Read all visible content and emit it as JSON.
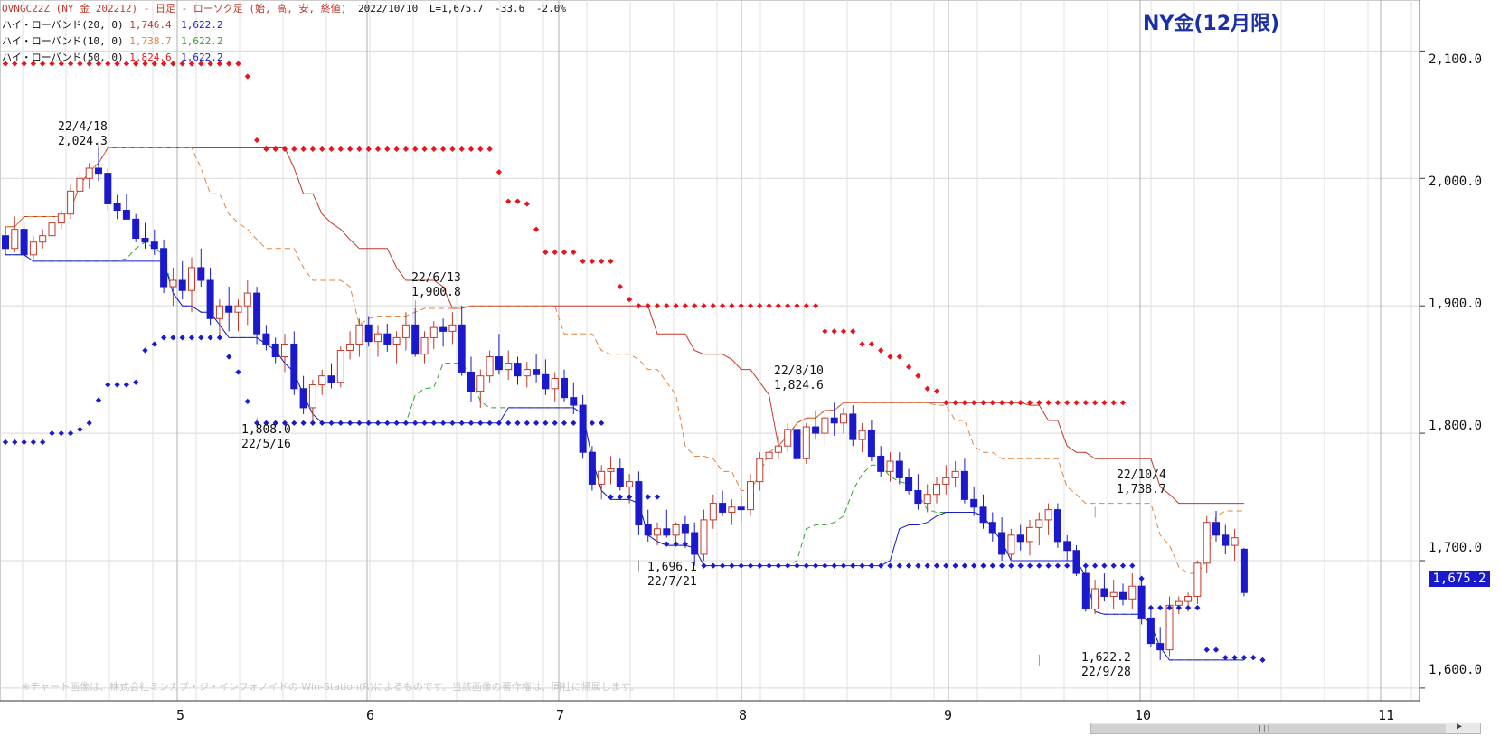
{
  "header": {
    "line1": {
      "title": "OVNGC22Z (NY 金 202212) - 日足 - ローソク足 (始, 高, 安, 終値)",
      "date": "2022/10/10",
      "last": "L=1,675.7",
      "change": "-33.6",
      "pct": "-2.0%"
    },
    "band20": {
      "label": "ハイ・ローバンド(20, 0)",
      "high": "1,746.4",
      "low": "1,622.2"
    },
    "band10": {
      "label": "ハイ・ローバンド(10, 0)",
      "high": "1,738.7",
      "low": "1,622.2"
    },
    "band50": {
      "label": "ハイ・ローバンド(50, 0)",
      "high": "1,824.6",
      "low": "1,622.2"
    }
  },
  "big_title": "NY金(12月限)",
  "watermark": "※チャート画像は、株式会社ミンカブ・ジ・インフォノイドの Win-Station(R)によるものです。当該画像の著作権は、同社に帰属します。",
  "last_price_label": "1,675.2",
  "annotations": {
    "a1": {
      "date": "22/4/18",
      "value": "2,024.3"
    },
    "a2": {
      "value": "1,808.0",
      "date": "22/5/16"
    },
    "a3": {
      "date": "22/6/13",
      "value": "1,900.8"
    },
    "a4": {
      "value": "1,696.1",
      "date": "22/7/21"
    },
    "a5": {
      "date": "22/8/10",
      "value": "1,824.6"
    },
    "a6": {
      "date": "22/10/4",
      "value": "1,738.7"
    },
    "a7": {
      "value": "1,622.2",
      "date": "22/9/28"
    }
  },
  "colors": {
    "up_candle": "#c0392b",
    "down_candle": "#1a1acc",
    "band20": "#c0392b",
    "band10": "#e0833c",
    "band50": "#1a1acc",
    "band50_dots_high": "#e8131b",
    "band50_dots_low": "#1a1acc",
    "low_line_green": "#2ea52e",
    "title": "#1a2fa8"
  },
  "chart_data": {
    "type": "candlestick",
    "title": "NY金(12月限)",
    "ylim": [
      1590,
      2140
    ],
    "y_ticks": [
      "2,100.0",
      "2,000.0",
      "1,900.0",
      "1,800.0",
      "1,700.0",
      "1,600.0"
    ],
    "x_ticks": [
      "5",
      "6",
      "7",
      "8",
      "9",
      "10",
      "11"
    ],
    "grid": true,
    "ohlc": [
      [
        1955,
        1962,
        1940,
        1945
      ],
      [
        1945,
        1970,
        1942,
        1960
      ],
      [
        1960,
        1965,
        1935,
        1940
      ],
      [
        1940,
        1955,
        1937,
        1950
      ],
      [
        1950,
        1960,
        1945,
        1955
      ],
      [
        1955,
        1968,
        1952,
        1965
      ],
      [
        1965,
        1975,
        1960,
        1972
      ],
      [
        1972,
        1995,
        1968,
        1990
      ],
      [
        1990,
        2005,
        1985,
        2000
      ],
      [
        2000,
        2012,
        1992,
        2008
      ],
      [
        2008,
        2024,
        1998,
        2004
      ],
      [
        2004,
        2008,
        1975,
        1980
      ],
      [
        1980,
        1987,
        1968,
        1975
      ],
      [
        1975,
        1988,
        1970,
        1968
      ],
      [
        1968,
        1972,
        1950,
        1953
      ],
      [
        1953,
        1965,
        1945,
        1950
      ],
      [
        1950,
        1960,
        1940,
        1945
      ],
      [
        1945,
        1952,
        1910,
        1915
      ],
      [
        1915,
        1930,
        1900,
        1920
      ],
      [
        1920,
        1935,
        1905,
        1912
      ],
      [
        1912,
        1938,
        1895,
        1930
      ],
      [
        1930,
        1945,
        1915,
        1920
      ],
      [
        1920,
        1930,
        1885,
        1890
      ],
      [
        1890,
        1905,
        1875,
        1900
      ],
      [
        1900,
        1915,
        1880,
        1895
      ],
      [
        1895,
        1905,
        1880,
        1900
      ],
      [
        1900,
        1920,
        1885,
        1910
      ],
      [
        1910,
        1915,
        1870,
        1878
      ],
      [
        1878,
        1885,
        1865,
        1870
      ],
      [
        1870,
        1875,
        1855,
        1860
      ],
      [
        1860,
        1878,
        1848,
        1870
      ],
      [
        1870,
        1880,
        1830,
        1835
      ],
      [
        1835,
        1845,
        1815,
        1820
      ],
      [
        1820,
        1842,
        1808,
        1838
      ],
      [
        1838,
        1850,
        1830,
        1845
      ],
      [
        1845,
        1855,
        1835,
        1840
      ],
      [
        1840,
        1868,
        1836,
        1865
      ],
      [
        1865,
        1880,
        1858,
        1870
      ],
      [
        1870,
        1890,
        1860,
        1885
      ],
      [
        1885,
        1892,
        1868,
        1872
      ],
      [
        1872,
        1885,
        1860,
        1878
      ],
      [
        1878,
        1886,
        1864,
        1870
      ],
      [
        1870,
        1880,
        1855,
        1875
      ],
      [
        1875,
        1895,
        1865,
        1885
      ],
      [
        1885,
        1898,
        1860,
        1862
      ],
      [
        1862,
        1880,
        1855,
        1875
      ],
      [
        1875,
        1888,
        1866,
        1883
      ],
      [
        1883,
        1890,
        1868,
        1880
      ],
      [
        1880,
        1895,
        1870,
        1885
      ],
      [
        1885,
        1900,
        1845,
        1848
      ],
      [
        1848,
        1860,
        1825,
        1833
      ],
      [
        1833,
        1850,
        1820,
        1845
      ],
      [
        1845,
        1865,
        1840,
        1860
      ],
      [
        1860,
        1878,
        1846,
        1850
      ],
      [
        1850,
        1865,
        1842,
        1855
      ],
      [
        1855,
        1860,
        1838,
        1845
      ],
      [
        1845,
        1856,
        1836,
        1850
      ],
      [
        1850,
        1862,
        1840,
        1846
      ],
      [
        1846,
        1858,
        1830,
        1835
      ],
      [
        1835,
        1848,
        1825,
        1843
      ],
      [
        1843,
        1850,
        1825,
        1828
      ],
      [
        1828,
        1840,
        1815,
        1822
      ],
      [
        1822,
        1830,
        1780,
        1785
      ],
      [
        1785,
        1790,
        1755,
        1760
      ],
      [
        1760,
        1775,
        1748,
        1770
      ],
      [
        1770,
        1782,
        1760,
        1772
      ],
      [
        1772,
        1780,
        1755,
        1758
      ],
      [
        1758,
        1768,
        1745,
        1762
      ],
      [
        1762,
        1770,
        1720,
        1728
      ],
      [
        1728,
        1740,
        1715,
        1720
      ],
      [
        1720,
        1730,
        1712,
        1725
      ],
      [
        1725,
        1740,
        1718,
        1720
      ],
      [
        1720,
        1730,
        1712,
        1728
      ],
      [
        1728,
        1735,
        1710,
        1722
      ],
      [
        1722,
        1730,
        1696,
        1705
      ],
      [
        1705,
        1740,
        1700,
        1732
      ],
      [
        1732,
        1752,
        1725,
        1745
      ],
      [
        1745,
        1755,
        1735,
        1738
      ],
      [
        1738,
        1748,
        1728,
        1742
      ],
      [
        1742,
        1750,
        1730,
        1740
      ],
      [
        1740,
        1768,
        1735,
        1762
      ],
      [
        1762,
        1785,
        1755,
        1780
      ],
      [
        1780,
        1790,
        1768,
        1785
      ],
      [
        1785,
        1798,
        1780,
        1790
      ],
      [
        1790,
        1808,
        1785,
        1803
      ],
      [
        1803,
        1812,
        1775,
        1780
      ],
      [
        1780,
        1808,
        1776,
        1805
      ],
      [
        1805,
        1818,
        1795,
        1800
      ],
      [
        1800,
        1815,
        1790,
        1812
      ],
      [
        1812,
        1824,
        1798,
        1808
      ],
      [
        1808,
        1820,
        1800,
        1815
      ],
      [
        1815,
        1822,
        1790,
        1795
      ],
      [
        1795,
        1808,
        1785,
        1802
      ],
      [
        1802,
        1810,
        1778,
        1782
      ],
      [
        1782,
        1790,
        1766,
        1770
      ],
      [
        1770,
        1785,
        1762,
        1778
      ],
      [
        1778,
        1785,
        1760,
        1765
      ],
      [
        1765,
        1772,
        1752,
        1755
      ],
      [
        1755,
        1768,
        1740,
        1745
      ],
      [
        1745,
        1760,
        1738,
        1752
      ],
      [
        1752,
        1766,
        1745,
        1760
      ],
      [
        1760,
        1775,
        1752,
        1765
      ],
      [
        1765,
        1778,
        1758,
        1770
      ],
      [
        1770,
        1780,
        1745,
        1748
      ],
      [
        1748,
        1758,
        1735,
        1742
      ],
      [
        1742,
        1752,
        1725,
        1730
      ],
      [
        1730,
        1738,
        1715,
        1722
      ],
      [
        1722,
        1734,
        1700,
        1705
      ],
      [
        1705,
        1725,
        1700,
        1720
      ],
      [
        1720,
        1728,
        1708,
        1715
      ],
      [
        1715,
        1732,
        1704,
        1726
      ],
      [
        1726,
        1738,
        1712,
        1732
      ],
      [
        1732,
        1745,
        1720,
        1740
      ],
      [
        1740,
        1745,
        1710,
        1715
      ],
      [
        1715,
        1720,
        1700,
        1708
      ],
      [
        1708,
        1712,
        1688,
        1690
      ],
      [
        1690,
        1695,
        1660,
        1662
      ],
      [
        1662,
        1685,
        1658,
        1678
      ],
      [
        1678,
        1690,
        1668,
        1672
      ],
      [
        1672,
        1685,
        1662,
        1675
      ],
      [
        1675,
        1682,
        1665,
        1670
      ],
      [
        1670,
        1690,
        1662,
        1680
      ],
      [
        1680,
        1688,
        1650,
        1655
      ],
      [
        1655,
        1665,
        1632,
        1635
      ],
      [
        1635,
        1648,
        1622,
        1630
      ],
      [
        1630,
        1672,
        1625,
        1665
      ],
      [
        1665,
        1672,
        1658,
        1668
      ],
      [
        1668,
        1675,
        1660,
        1672
      ],
      [
        1672,
        1700,
        1666,
        1698
      ],
      [
        1698,
        1735,
        1690,
        1730
      ],
      [
        1730,
        1739,
        1715,
        1720
      ],
      [
        1720,
        1728,
        1705,
        1712
      ],
      [
        1712,
        1725,
        1700,
        1718
      ],
      [
        1709,
        1710,
        1672,
        1675
      ]
    ],
    "high_low_band_50_dots": {
      "high_series": [
        [
          0,
          2090
        ],
        [
          25,
          2090
        ],
        [
          26,
          2080
        ],
        [
          27,
          2030
        ],
        [
          28,
          2023
        ],
        [
          52,
          2023
        ],
        [
          53,
          2005
        ],
        [
          54,
          1982
        ],
        [
          56,
          1980
        ],
        [
          57,
          1960
        ],
        [
          58,
          1942
        ],
        [
          61,
          1942
        ],
        [
          62,
          1935
        ],
        [
          65,
          1935
        ],
        [
          66,
          1915
        ],
        [
          67,
          1905
        ],
        [
          68,
          1900
        ],
        [
          87,
          1900
        ],
        [
          88,
          1880
        ],
        [
          91,
          1880
        ],
        [
          92,
          1870
        ],
        [
          94,
          1865
        ],
        [
          95,
          1860
        ],
        [
          97,
          1852
        ],
        [
          98,
          1845
        ],
        [
          99,
          1835
        ],
        [
          100,
          1833
        ],
        [
          101,
          1824
        ],
        [
          120,
          1824
        ]
      ],
      "low_series": [
        [
          0,
          1793
        ],
        [
          4,
          1793
        ],
        [
          5,
          1800
        ],
        [
          8,
          1803
        ],
        [
          9,
          1808
        ],
        [
          10,
          1826
        ],
        [
          11,
          1838
        ],
        [
          14,
          1840
        ],
        [
          15,
          1865
        ],
        [
          16,
          1870
        ],
        [
          17,
          1875
        ],
        [
          23,
          1875
        ],
        [
          24,
          1860
        ],
        [
          25,
          1848
        ],
        [
          26,
          1825
        ],
        [
          27,
          1808
        ],
        [
          64,
          1808
        ],
        [
          65,
          1750
        ],
        [
          71,
          1713
        ],
        [
          75,
          1696
        ],
        [
          121,
          1696
        ],
        [
          122,
          1686
        ],
        [
          123,
          1663
        ],
        [
          128,
          1663
        ],
        [
          129,
          1630
        ],
        [
          131,
          1624
        ],
        [
          135,
          1622
        ]
      ]
    }
  }
}
